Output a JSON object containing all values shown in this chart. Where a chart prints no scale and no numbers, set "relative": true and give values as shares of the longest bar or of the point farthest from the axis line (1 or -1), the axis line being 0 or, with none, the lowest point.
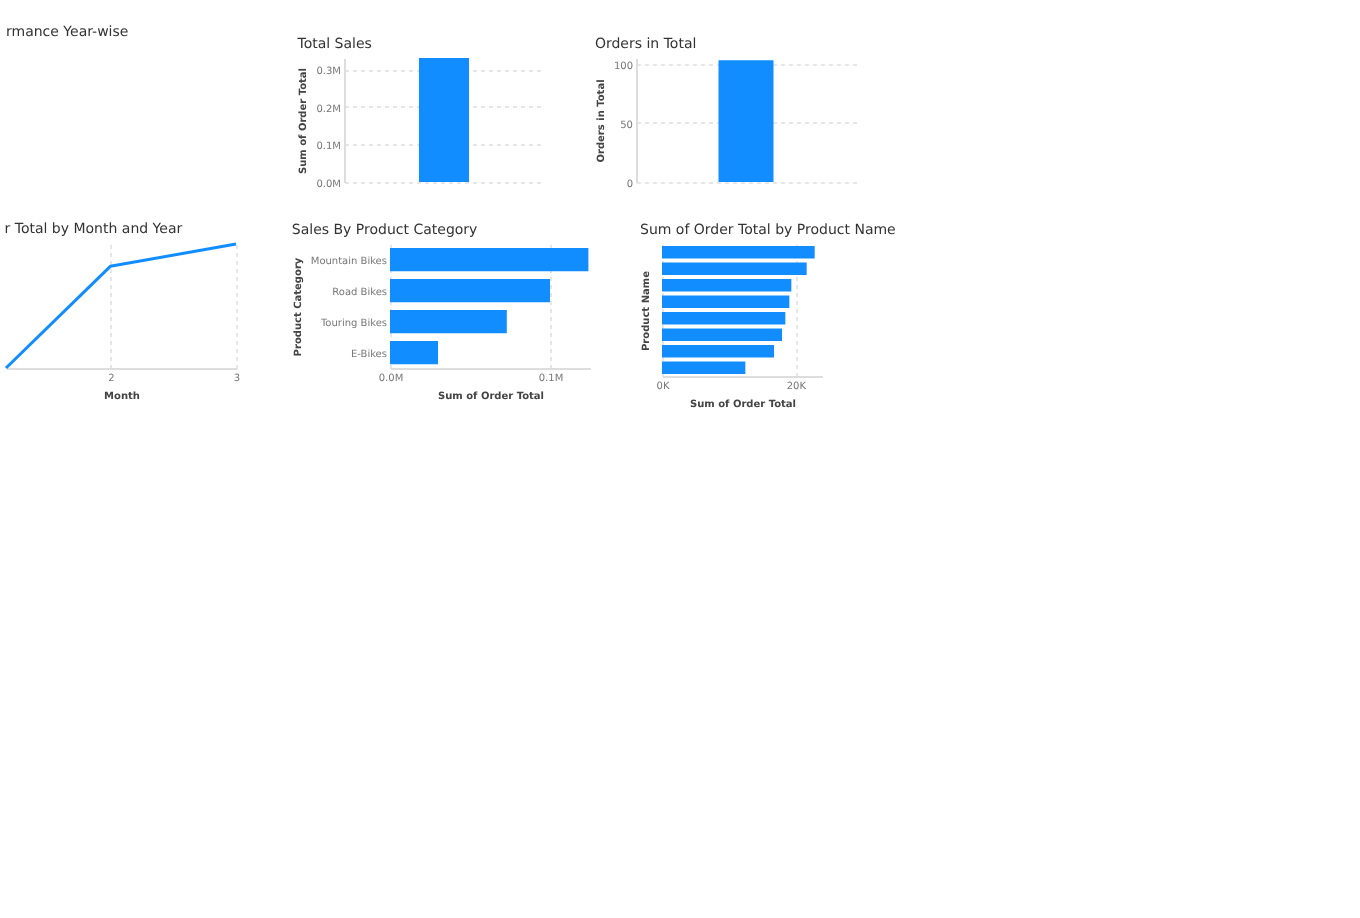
{
  "chart_data": [
    {
      "type": "other",
      "title": "rmance Year-wise"
    },
    {
      "type": "bar",
      "title": "Total Sales",
      "ylabel": "Sum of Order Total",
      "categories": [
        null
      ],
      "values": [
        0.33
      ],
      "color": "#118dff",
      "ylim": [
        0,
        0.33
      ],
      "yticks": [
        {
          "value": 0,
          "label": "0.0M"
        },
        {
          "value": 0.1,
          "label": "0.1M"
        },
        {
          "value": 0.2,
          "label": "0.2M"
        },
        {
          "value": 0.3,
          "label": "0.3M"
        }
      ],
      "grid": "y"
    },
    {
      "type": "bar",
      "title": "Orders in Total",
      "ylabel": "Orders in Total",
      "categories": [
        null
      ],
      "values": [
        103
      ],
      "color": "#118dff",
      "ylim": [
        0,
        105
      ],
      "yticks": [
        0,
        50,
        100
      ],
      "grid": "y"
    },
    {
      "type": "line",
      "title": "r Total by Month and Year",
      "xlabel": "Month",
      "x": [
        1.17,
        2,
        3
      ],
      "values": [
        0,
        0.82,
        1
      ],
      "relative": true,
      "color": "#118dff",
      "xlim": [
        1.17,
        3
      ],
      "xticks": [
        2,
        3
      ],
      "grid": "x"
    },
    {
      "type": "bar",
      "orientation": "horizontal",
      "title": "Sales By Product Category",
      "xlabel": "Sum of Order Total",
      "ylabel": "Product Category",
      "categories": [
        "Mountain Bikes",
        "Road Bikes",
        "Touring Bikes",
        "E-Bikes"
      ],
      "values": [
        0.124,
        0.1,
        0.073,
        0.03
      ],
      "color": "#118dff",
      "xlim": [
        0,
        0.125
      ],
      "xticks": [
        {
          "value": 0,
          "label": "0.0M"
        },
        {
          "value": 0.1,
          "label": "0.1M"
        }
      ],
      "grid": "x"
    },
    {
      "type": "bar",
      "orientation": "horizontal",
      "title": "Sum of Order Total by Product Name",
      "xlabel": "Sum of Order Total",
      "ylabel": "Product Name",
      "categories": [
        null,
        null,
        null,
        null,
        null,
        null,
        null,
        null
      ],
      "values": [
        22.9,
        21.7,
        19.4,
        19.1,
        18.5,
        18.0,
        16.8,
        12.5
      ],
      "color": "#118dff",
      "xlim": [
        0,
        24
      ],
      "xticks": [
        {
          "value": 0,
          "label": "0K"
        },
        {
          "value": 20,
          "label": "20K"
        }
      ],
      "grid": "x"
    }
  ]
}
